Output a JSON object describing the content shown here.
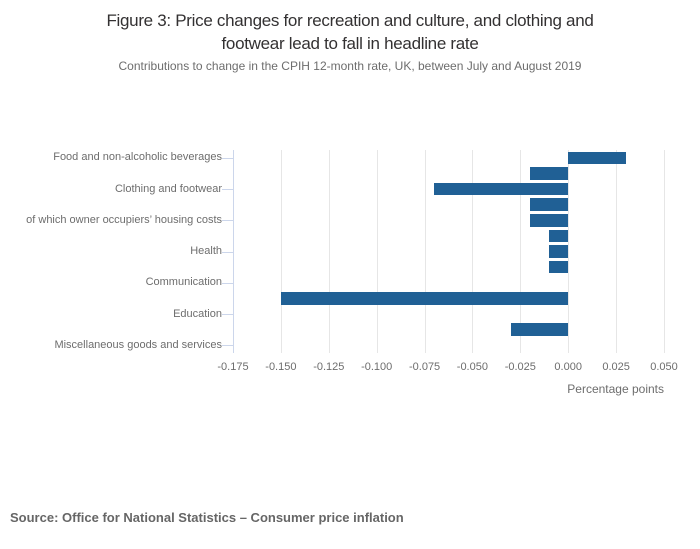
{
  "header": {
    "title_line1": "Figure 3: Price changes for recreation and culture, and clothing and",
    "title_line2": "footwear lead to fall in headline rate",
    "subtitle": "Contributions to change in the CPIH 12-month rate, UK, between July and August 2019"
  },
  "footer": {
    "source": "Source: Office for National Statistics – Consumer price inflation"
  },
  "chart_data": {
    "type": "bar",
    "orientation": "horizontal",
    "title": "Figure 3: Price changes for recreation and culture, and clothing and footwear lead to fall in headline rate",
    "subtitle": "Contributions to change in the CPIH 12-month rate, UK, between July and August 2019",
    "categories": [
      "Food and non-alcoholic beverages",
      "",
      "Clothing and footwear",
      "",
      "of which owner occupiers’ housing costs",
      "",
      "Health",
      "",
      "Communication",
      "",
      "Education",
      "",
      "Miscellaneous goods and services"
    ],
    "values": [
      0.03,
      -0.02,
      -0.07,
      -0.02,
      -0.02,
      -0.01,
      -0.01,
      -0.01,
      0,
      -0.15,
      0,
      -0.03,
      0
    ],
    "xlabel": "Percentage points",
    "ylabel": "",
    "xlim": [
      -0.175,
      0.05
    ],
    "tick_values": [
      -0.175,
      -0.15,
      -0.125,
      -0.1,
      -0.075,
      -0.05,
      -0.025,
      0,
      0.025,
      0.05
    ],
    "tick_labels": [
      "-0.175",
      "-0.150",
      "-0.125",
      "-0.100",
      "-0.075",
      "-0.050",
      "-0.025",
      "0.000",
      "0.025",
      "0.050"
    ],
    "grid": true,
    "legend": "none",
    "colors": {
      "bar": "#206095",
      "gridline": "#e6e6e6",
      "axis_line": "#ccd6eb",
      "text": "#6d6d6d",
      "title": "#333132"
    }
  }
}
